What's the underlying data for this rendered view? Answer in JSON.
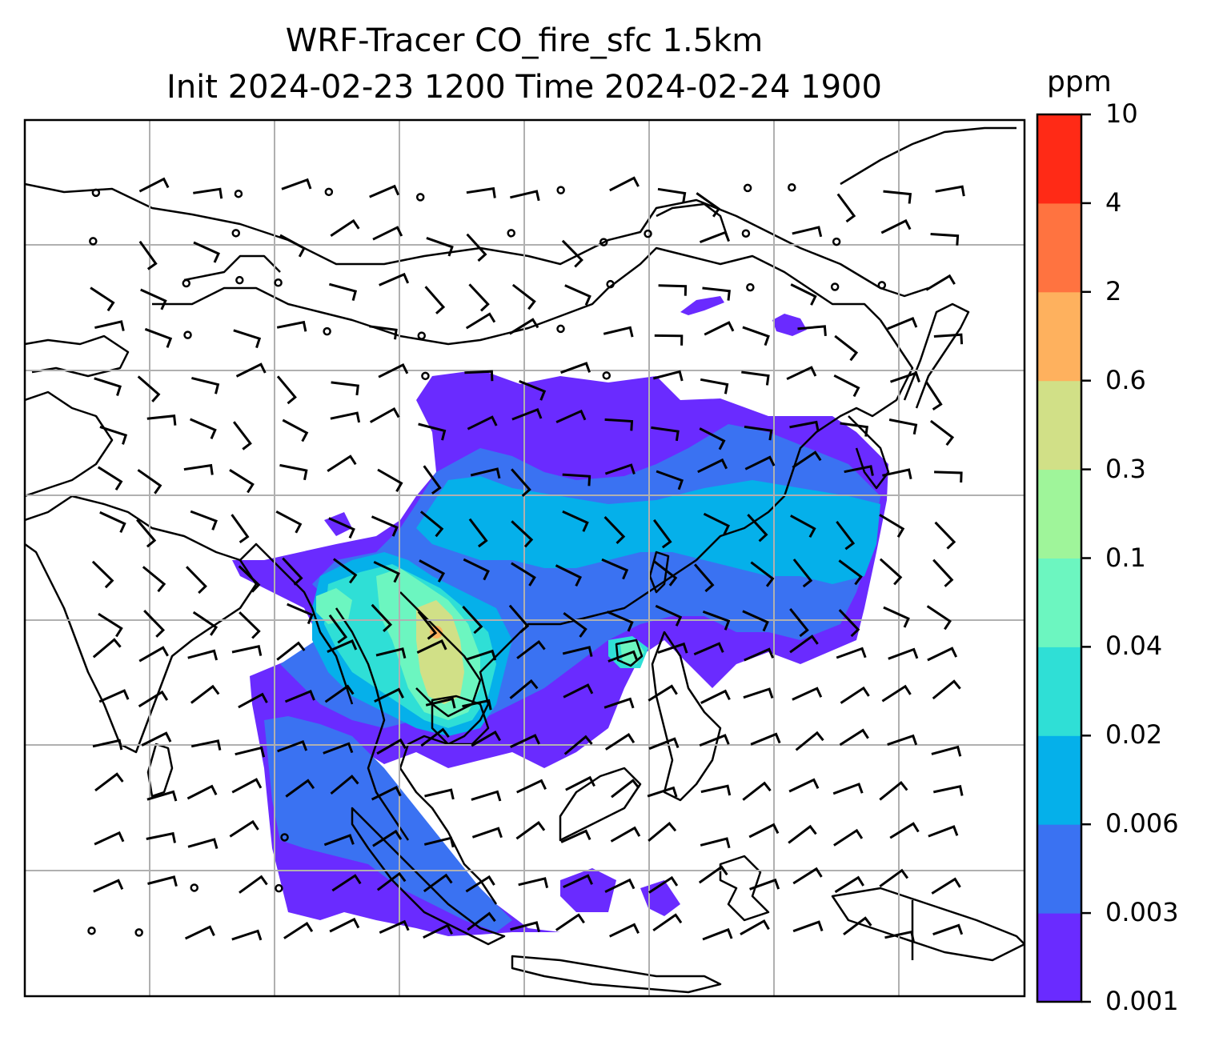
{
  "title": {
    "line1": "WRF-Tracer CO_fire_sfc 1.5km",
    "line2": "Init 2024-02-23 1200 Time 2024-02-24 1900"
  },
  "colorbar": {
    "unit": "ppm",
    "levels": [
      "0.001",
      "0.003",
      "0.006",
      "0.02",
      "0.04",
      "0.1",
      "0.3",
      "0.6",
      "2",
      "4",
      "10"
    ],
    "colors": [
      "#6a2bff",
      "#3a72f2",
      "#05b0ea",
      "#2fdfd6",
      "#6cf6c0",
      "#9ff59a",
      "#d1e087",
      "#feb15e",
      "#ff7340",
      "#ff2a16"
    ]
  },
  "map": {
    "gridlines": true,
    "field_colors": {
      "lowest": "#6a2bff",
      "low": "#3a72f2",
      "mid": "#05b0ea",
      "higher": "#2fdfd6",
      "high": "#6cf6c0",
      "peak": "#d1e087",
      "max": "#feb15e"
    }
  }
}
